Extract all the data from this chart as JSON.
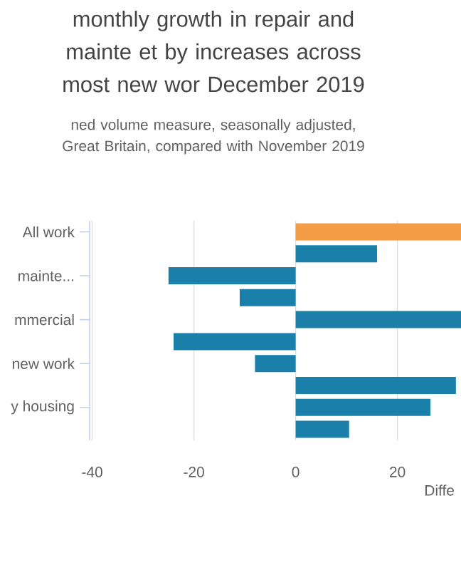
{
  "chart_data": {
    "type": "bar",
    "orientation": "horizontal",
    "title": "monthly growth in repair and mainte et by increases across most new wor December 2019",
    "subtitle": "ned volume measure, seasonally adjusted, Great Britain, compared with November 2019",
    "xlabel": "Diffe",
    "categories": [
      "All work",
      null,
      "mainte...",
      null,
      "mmercial",
      null,
      "new work",
      null,
      "y housing",
      null
    ],
    "values": [
      32.5,
      16,
      -25,
      -11,
      32.5,
      -24,
      -8,
      31.5,
      26.5,
      10.5
    ],
    "colors": [
      "#f39c45",
      "#1a80aa",
      "#1a80aa",
      "#1a80aa",
      "#1a80aa",
      "#1a80aa",
      "#1a80aa",
      "#1a80aa",
      "#1a80aa",
      "#1a80aa"
    ],
    "xlim": [
      -40.5,
      32.5
    ],
    "xticks": [
      -40,
      -20,
      0,
      20
    ],
    "grid": "x"
  }
}
